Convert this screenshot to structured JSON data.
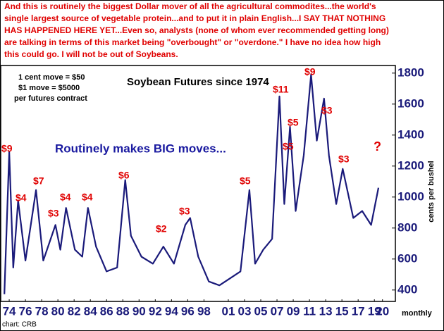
{
  "chart_data": {
    "type": "line",
    "header": [
      "And this is routinely the biggest Dollar mover of all the agricultural commodites...the world's",
      "single largest source of vegetable protein...and to put it in plain English...I SAY THAT NOTHING",
      "HAS HAPPENED HERE YET...Even so, analysts (none of whom ever recommended getting long)",
      "are talking in terms of this market being \"overbought\" or \"overdone.\" I have no idea how high",
      "this could go. I will not be out of Soybeans."
    ],
    "title": "Soybean Futures since 1974",
    "contract_notes": [
      "1 cent move = $50",
      "$1 move = $5000",
      "per futures contract"
    ],
    "subtitle": "Routinely makes BIG moves...",
    "y_label": "cents per bushel",
    "x_label": "monthly",
    "source": "chart: CRB",
    "annotations": [
      "$9",
      "$4",
      "$7",
      "$3",
      "$4",
      "$4",
      "$6",
      "$2",
      "$3",
      "$5",
      "$11",
      "$5",
      "$5",
      "$9",
      "$3",
      "$3",
      "?"
    ],
    "x": [
      1973.4,
      1974.0,
      1974.5,
      1975.1,
      1976.0,
      1977.3,
      1978.2,
      1979.7,
      1980.3,
      1981.0,
      1982.1,
      1983.0,
      1983.7,
      1984.7,
      1986.0,
      1987.3,
      1988.3,
      1989.0,
      1990.3,
      1991.7,
      1993.0,
      1994.3,
      1995.7,
      1996.3,
      1997.3,
      1998.6,
      1999.9,
      2001.2,
      2002.5,
      2003.6,
      2004.3,
      2005.3,
      2006.4,
      2007.3,
      2007.9,
      2008.6,
      2009.3,
      2010.3,
      2011.2,
      2011.9,
      2012.8,
      2013.4,
      2014.3,
      2015.1,
      2016.4,
      2017.5,
      2018.6,
      2019.5
    ],
    "series": [
      {
        "name": "Soybean Futures",
        "color": "#1a1a7a",
        "values": [
          373,
          1290,
          545,
          977,
          590,
          1045,
          590,
          820,
          660,
          930,
          660,
          615,
          930,
          680,
          520,
          545,
          1110,
          750,
          615,
          570,
          680,
          570,
          820,
          865,
          615,
          455,
          430,
          475,
          520,
          1045,
          570,
          660,
          730,
          1650,
          955,
          1454,
          910,
          1270,
          1790,
          1364,
          1636,
          1270,
          955,
          1182,
          865,
          910,
          820,
          1060
        ]
      }
    ],
    "xlim": [
      1973.3,
      2021.5
    ],
    "ylim": [
      340,
      1840
    ],
    "yticks": [
      400,
      600,
      800,
      1000,
      1200,
      1400,
      1600,
      1800
    ],
    "xticks": [
      {
        "value": 1974,
        "label": "74"
      },
      {
        "value": 1976,
        "label": "76"
      },
      {
        "value": 1978,
        "label": "78"
      },
      {
        "value": 1980,
        "label": "80"
      },
      {
        "value": 1982,
        "label": "82"
      },
      {
        "value": 1984,
        "label": "84"
      },
      {
        "value": 1986,
        "label": "86"
      },
      {
        "value": 1988,
        "label": "88"
      },
      {
        "value": 1990,
        "label": "90"
      },
      {
        "value": 1992,
        "label": "92"
      },
      {
        "value": 1994,
        "label": "94"
      },
      {
        "value": 1996,
        "label": "96"
      },
      {
        "value": 1998,
        "label": "98"
      },
      {
        "value": 2001,
        "label": "01"
      },
      {
        "value": 2003,
        "label": "03"
      },
      {
        "value": 2005,
        "label": "05"
      },
      {
        "value": 2007,
        "label": "07"
      },
      {
        "value": 2009,
        "label": "09"
      },
      {
        "value": 2011,
        "label": "11"
      },
      {
        "value": 2013,
        "label": "13"
      },
      {
        "value": 2015,
        "label": "15"
      },
      {
        "value": 2017,
        "label": "17"
      },
      {
        "value": 2019,
        "label": "19"
      },
      {
        "value": 2020,
        "label": "20"
      }
    ]
  }
}
